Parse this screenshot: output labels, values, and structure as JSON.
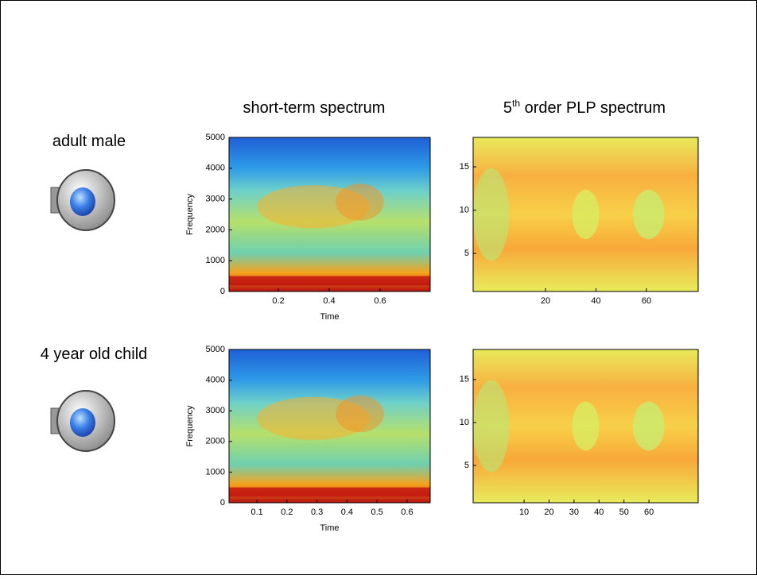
{
  "column_titles": {
    "left": "short-term spectrum",
    "right": {
      "base": "5",
      "sup": "th",
      "rest": " order PLP spectrum"
    }
  },
  "rows": [
    {
      "label": "adult male"
    },
    {
      "label": "4 year old child"
    }
  ],
  "chart_data": [
    {
      "type": "heatmap",
      "style": "spectrogram",
      "xlabel": "Time",
      "ylabel": "Frequency",
      "xlim": [
        0.006,
        0.797
      ],
      "xticks": [
        0.2,
        0.4,
        0.6
      ],
      "ylim": [
        0,
        5000
      ],
      "yticks": [
        0,
        1000,
        2000,
        3000,
        4000,
        5000
      ]
    },
    {
      "type": "heatmap",
      "style": "plp",
      "xlim": [
        -8.7,
        80.5
      ],
      "xticks": [
        20,
        40,
        60
      ],
      "ylim": [
        0.6,
        18.4
      ],
      "yticks": [
        5,
        10,
        15
      ]
    },
    {
      "type": "heatmap",
      "style": "spectrogram",
      "xlabel": "Time",
      "ylabel": "Frequency",
      "xlim": [
        0.007,
        0.677
      ],
      "xticks": [
        0.1,
        0.2,
        0.3,
        0.4,
        0.5,
        0.6
      ],
      "ylim": [
        0,
        5000
      ],
      "yticks": [
        0,
        1000,
        2000,
        3000,
        4000,
        5000
      ]
    },
    {
      "type": "heatmap",
      "style": "plp",
      "xlim": [
        -10.4,
        79.7
      ],
      "xticks": [
        10,
        20,
        30,
        40,
        50,
        60
      ],
      "ylim": [
        0.65,
        18.5
      ],
      "yticks": [
        5,
        10,
        15
      ]
    }
  ]
}
